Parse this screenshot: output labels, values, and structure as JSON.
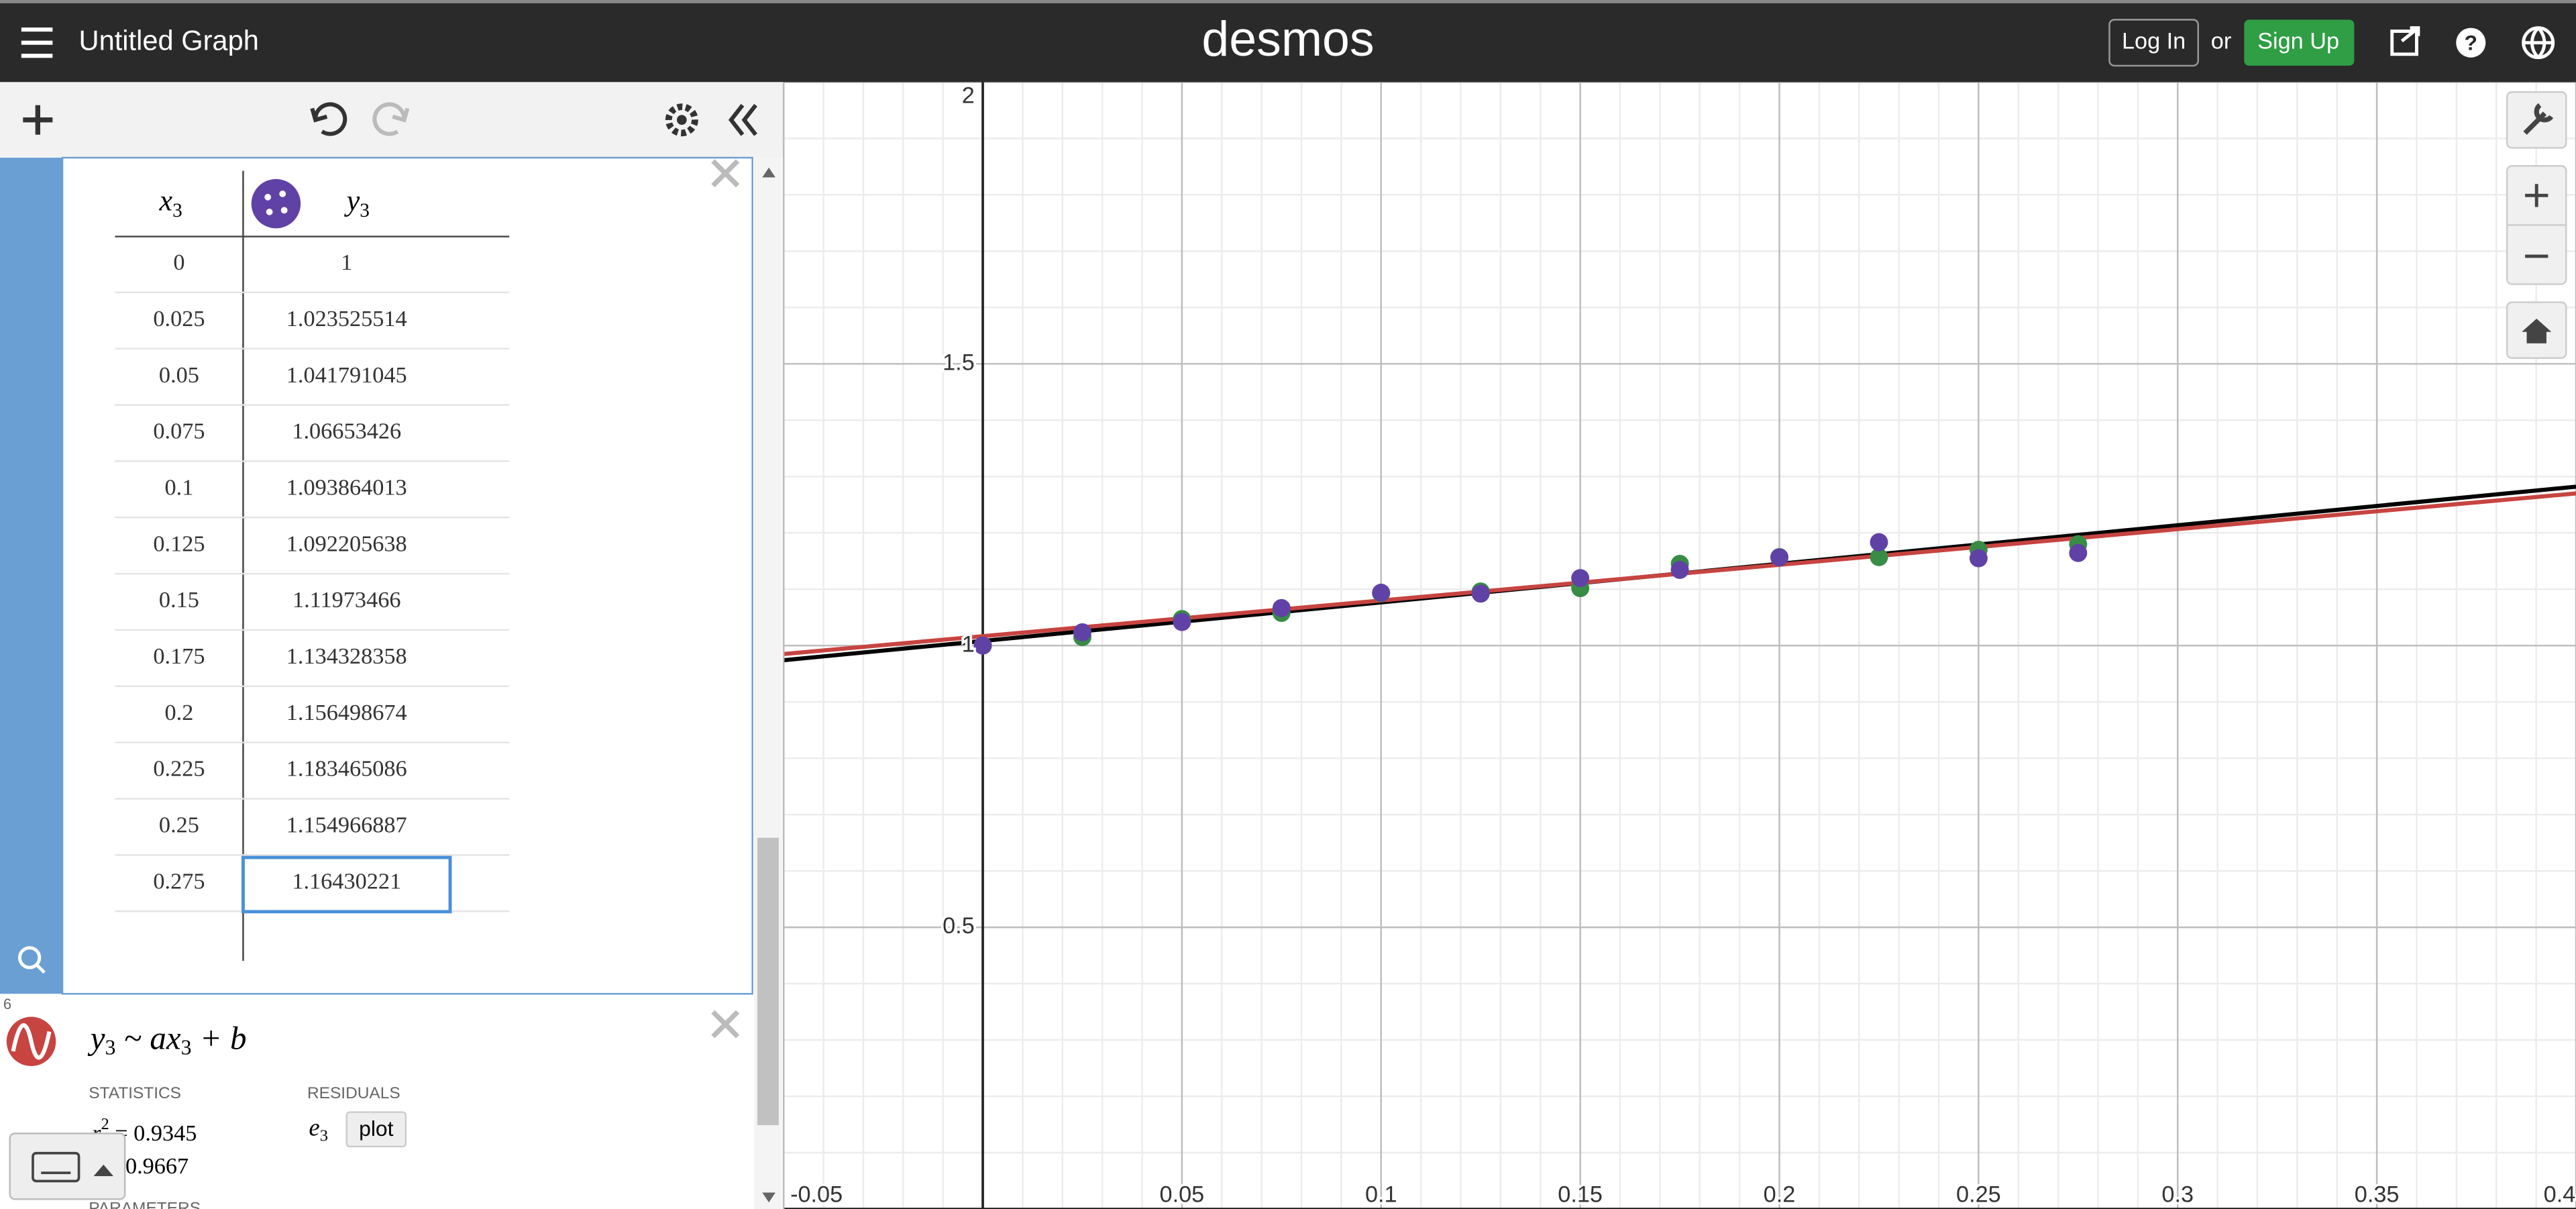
{
  "header": {
    "title": "Untitled Graph",
    "logo": "desmos",
    "login": "Log In",
    "or": "or",
    "signup": "Sign Up"
  },
  "table": {
    "columns": [
      {
        "name": "x",
        "sub": "3"
      },
      {
        "name": "y",
        "sub": "3"
      }
    ]
  },
  "regression": {
    "index": "6",
    "expr": [
      {
        "t": "y"
      },
      {
        "t": "3",
        "sub": true
      },
      {
        "t": " ~ ax"
      },
      {
        "t": "3",
        "sub": true
      },
      {
        "t": " + b"
      }
    ],
    "statistics_label": "STATISTICS",
    "residuals_label": "RESIDUALS",
    "stats": [
      {
        "symbol": "r",
        "exp": "2",
        "value": " = 0.9345"
      },
      {
        "symbol": "r",
        "value": " = 0.9667"
      }
    ],
    "residual": {
      "name": "e",
      "sub": "3"
    },
    "plot_button": "plot",
    "parameters_label": "PARAMETERS"
  },
  "chart_data": {
    "type": "scatter",
    "xlim": [
      -0.05,
      0.4
    ],
    "ylim": [
      0,
      2
    ],
    "xticks": [
      -0.05,
      0.05,
      0.1,
      0.15,
      0.2,
      0.25,
      0.3,
      0.35,
      0.4
    ],
    "yticks": [
      0.5,
      1,
      1.5,
      2
    ],
    "grid": true,
    "series": [
      {
        "color": "#388c46",
        "x": [
          0,
          0.025,
          0.05,
          0.075,
          0.1,
          0.125,
          0.15,
          0.175,
          0.2,
          0.225,
          0.25,
          0.275
        ],
        "values": [
          1.0,
          1.015,
          1.047,
          1.058,
          1.093,
          1.096,
          1.102,
          1.145,
          1.157,
          1.157,
          1.17,
          1.18
        ]
      },
      {
        "color": "#6042a6",
        "x": [
          0,
          0.025,
          0.05,
          0.075,
          0.1,
          0.125,
          0.15,
          0.175,
          0.2,
          0.225,
          0.25,
          0.275
        ],
        "values": [
          1,
          1.023525514,
          1.041791045,
          1.06653426,
          1.093864013,
          1.092205638,
          1.11973466,
          1.134328358,
          1.156498674,
          1.183465086,
          1.154966887,
          1.16430221
        ]
      }
    ],
    "fit_lines": [
      {
        "color": "#000000",
        "x": [
          -0.05,
          0.4
        ],
        "values": [
          0.974,
          1.282
        ]
      },
      {
        "color": "#c74440",
        "x": [
          -0.05,
          0.4
        ],
        "values": [
          0.985,
          1.27
        ]
      }
    ]
  }
}
